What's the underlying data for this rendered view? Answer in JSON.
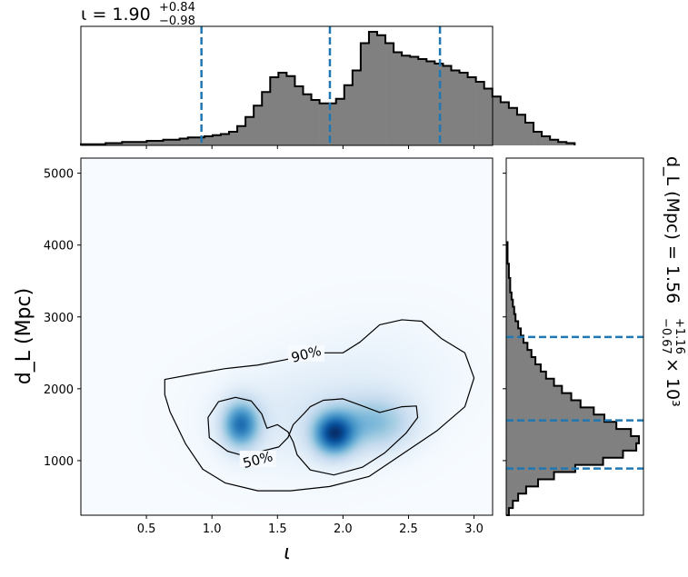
{
  "chart_data": [
    {
      "type": "histogram",
      "panel": "top-marginal",
      "title": {
        "text": "ι = 1.90",
        "sup": "+0.84",
        "sub": "−0.98"
      },
      "xlim": [
        0.0,
        3.14159
      ],
      "x_edges_start": 0.0,
      "bin_width": 0.0628,
      "values": [
        1,
        1,
        1,
        2,
        2,
        3,
        3,
        3,
        4,
        4,
        5,
        5,
        6,
        7,
        7,
        8,
        9,
        10,
        12,
        17,
        25,
        35,
        47,
        60,
        64,
        61,
        52,
        45,
        40,
        37,
        37,
        41,
        53,
        66,
        90,
        100,
        97,
        90,
        82,
        79,
        78,
        76,
        74,
        72,
        70,
        66,
        64,
        60,
        56,
        50,
        43,
        38,
        33,
        27,
        20,
        12,
        8,
        5,
        3,
        2
      ],
      "quantile_lines": [
        0.92,
        1.9,
        2.74
      ]
    },
    {
      "type": "heatmap",
      "panel": "joint",
      "xlabel": "ι",
      "ylabel": "d_L (Mpc)",
      "xlim": [
        0.0,
        3.14159
      ],
      "ylim": [
        240,
        5210
      ],
      "xticks": [
        "0.5",
        "1.0",
        "1.5",
        "2.0",
        "2.5",
        "3.0"
      ],
      "yticks": [
        "1000",
        "2000",
        "3000",
        "4000",
        "5000"
      ],
      "components": [
        {
          "x": 1.22,
          "y": 1500,
          "sx": 0.1,
          "sy": 230,
          "w": 0.85
        },
        {
          "x": 1.93,
          "y": 1370,
          "sx": 0.11,
          "sy": 210,
          "w": 1.0
        },
        {
          "x": 2.25,
          "y": 1520,
          "sx": 0.2,
          "sy": 260,
          "w": 0.45
        },
        {
          "x": 1.65,
          "y": 1600,
          "sx": 0.45,
          "sy": 500,
          "w": 0.15
        },
        {
          "x": 2.3,
          "y": 2200,
          "sx": 0.45,
          "sy": 550,
          "w": 0.08
        }
      ],
      "contours": [
        {
          "label": "90%",
          "label_x": 1.72,
          "label_y": 2480,
          "points": [
            [
              0.64,
              2130
            ],
            [
              0.85,
              2200
            ],
            [
              1.1,
              2280
            ],
            [
              1.35,
              2330
            ],
            [
              1.55,
              2400
            ],
            [
              1.8,
              2500
            ],
            [
              2.0,
              2500
            ],
            [
              2.13,
              2650
            ],
            [
              2.28,
              2890
            ],
            [
              2.45,
              2960
            ],
            [
              2.6,
              2940
            ],
            [
              2.75,
              2700
            ],
            [
              2.93,
              2500
            ],
            [
              3.0,
              2150
            ],
            [
              2.93,
              1750
            ],
            [
              2.72,
              1420
            ],
            [
              2.46,
              1100
            ],
            [
              2.2,
              780
            ],
            [
              1.9,
              640
            ],
            [
              1.6,
              580
            ],
            [
              1.35,
              580
            ],
            [
              1.1,
              690
            ],
            [
              0.93,
              880
            ],
            [
              0.8,
              1230
            ],
            [
              0.68,
              1680
            ],
            [
              0.64,
              1920
            ]
          ]
        },
        {
          "label": "50%",
          "label_x": 1.35,
          "label_y": 1010,
          "points": [
            [
              1.75,
              1750
            ],
            [
              1.85,
              1840
            ],
            [
              2.0,
              1860
            ],
            [
              2.15,
              1760
            ],
            [
              2.28,
              1670
            ],
            [
              2.45,
              1750
            ],
            [
              2.56,
              1760
            ],
            [
              2.57,
              1600
            ],
            [
              2.48,
              1380
            ],
            [
              2.32,
              1110
            ],
            [
              2.15,
              910
            ],
            [
              1.93,
              800
            ],
            [
              1.75,
              870
            ],
            [
              1.65,
              1080
            ],
            [
              1.62,
              1260
            ],
            [
              1.58,
              1400
            ],
            [
              1.5,
              1500
            ],
            [
              1.42,
              1450
            ],
            [
              1.38,
              1650
            ],
            [
              1.3,
              1830
            ],
            [
              1.18,
              1880
            ],
            [
              1.05,
              1820
            ],
            [
              0.97,
              1600
            ],
            [
              0.98,
              1320
            ],
            [
              1.12,
              1130
            ],
            [
              1.26,
              1060
            ],
            [
              1.4,
              1140
            ],
            [
              1.51,
              1190
            ],
            [
              1.58,
              1320
            ],
            [
              1.62,
              1500
            ],
            [
              1.7,
              1650
            ]
          ]
        }
      ]
    },
    {
      "type": "histogram",
      "panel": "right-marginal",
      "orientation": "horizontal",
      "title": {
        "text": "d_L (Mpc) = 1.56",
        "sup": "+1.16",
        "sub": "−0.67",
        "suffix": "× 10³"
      },
      "ylim": [
        240,
        5210
      ],
      "y_edges_start": 240,
      "bin_width": 100,
      "values": [
        2,
        5,
        9,
        15,
        24,
        36,
        52,
        73,
        88,
        98,
        100,
        94,
        83,
        74,
        66,
        56,
        49,
        42,
        36,
        30,
        26,
        22,
        19,
        16,
        13,
        11,
        9,
        7,
        6,
        5,
        4,
        3,
        3,
        2,
        2,
        1,
        1,
        1
      ],
      "quantile_lines": [
        890,
        1560,
        2720
      ]
    }
  ]
}
